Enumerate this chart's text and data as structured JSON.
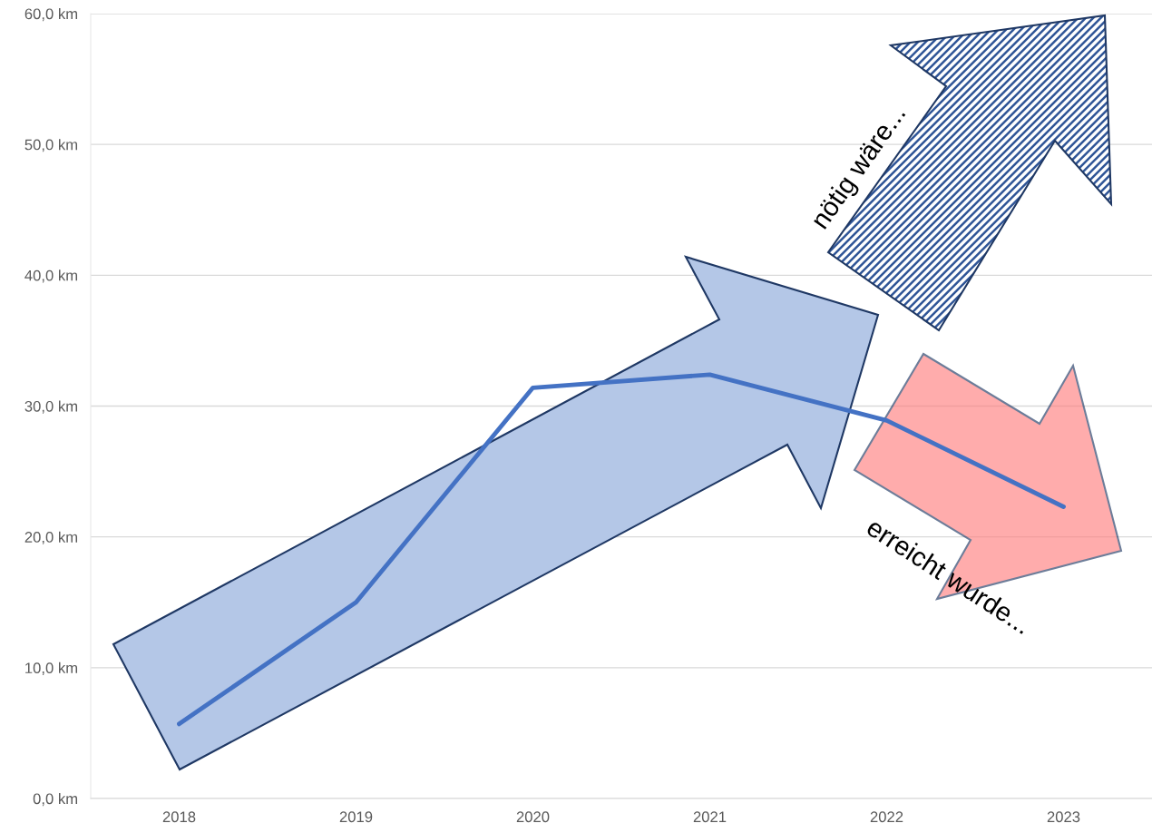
{
  "chart_data": {
    "type": "line",
    "categories": [
      "2018",
      "2019",
      "2020",
      "2021",
      "2022",
      "2023"
    ],
    "series": [
      {
        "color": "#4472c4",
        "values": [
          5.7,
          15.0,
          31.4,
          32.4,
          28.9,
          22.3
        ]
      }
    ],
    "ylim": [
      0,
      60
    ],
    "yticks": [
      {
        "value": 0,
        "label": "0,0 km"
      },
      {
        "value": 10,
        "label": "10,0 km"
      },
      {
        "value": 20,
        "label": "20,0 km"
      },
      {
        "value": 30,
        "label": "30,0 km"
      },
      {
        "value": 40,
        "label": "40,0 km"
      },
      {
        "value": 50,
        "label": "50,0 km"
      },
      {
        "value": 60,
        "label": "60,0 km"
      }
    ],
    "grid": "y",
    "marker": "none",
    "line_style": "solid",
    "annotations": [
      "nötig wäre...",
      "erreicht wurde..."
    ]
  }
}
